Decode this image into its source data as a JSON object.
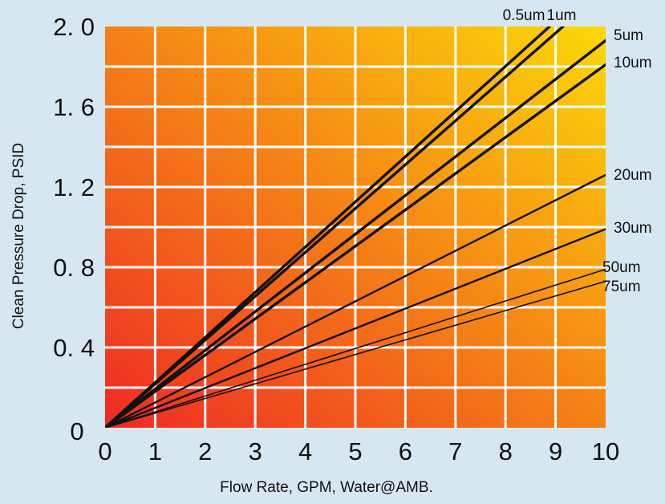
{
  "chart_data": {
    "type": "line",
    "xlabel": "Flow Rate, GPM, Water@AMB.",
    "ylabel": "Clean Pressure Drop, PSID",
    "xlim": [
      0,
      10
    ],
    "ylim": [
      0,
      2.0
    ],
    "x_ticks": [
      "0",
      "1",
      "2",
      "3",
      "4",
      "5",
      "6",
      "7",
      "8",
      "9",
      "10"
    ],
    "y_ticks": [
      {
        "value": 0,
        "label": "0"
      },
      {
        "value": 0.4,
        "label": "0. 4"
      },
      {
        "value": 0.8,
        "label": "0. 8"
      },
      {
        "value": 1.2,
        "label": "1. 2"
      },
      {
        "value": 1.6,
        "label": "1. 6"
      },
      {
        "value": 2.0,
        "label": "2. 0"
      }
    ],
    "grid": true,
    "grid_divisions": {
      "x": 10,
      "y": 10
    },
    "background_gradient": [
      "#ee2a24",
      "#fcd808"
    ],
    "line_color": "#111111",
    "series": [
      {
        "name": "0.5um",
        "x": [
          0,
          8.88
        ],
        "y": [
          0,
          2.0
        ],
        "weight": "heavy"
      },
      {
        "name": "1um",
        "x": [
          0,
          9.15
        ],
        "y": [
          0,
          2.0
        ],
        "weight": "heavy"
      },
      {
        "name": "5um",
        "x": [
          0,
          10
        ],
        "y": [
          0,
          1.93
        ],
        "weight": "heavy"
      },
      {
        "name": "10um",
        "x": [
          0,
          10
        ],
        "y": [
          0,
          1.81
        ],
        "weight": "heavy"
      },
      {
        "name": "20um",
        "x": [
          0,
          10
        ],
        "y": [
          0,
          1.26
        ],
        "weight": "medium"
      },
      {
        "name": "30um",
        "x": [
          0,
          10
        ],
        "y": [
          0,
          0.99
        ],
        "weight": "medium"
      },
      {
        "name": "50um",
        "x": [
          0,
          10
        ],
        "y": [
          0,
          0.79
        ],
        "weight": "light"
      },
      {
        "name": "75um",
        "x": [
          0,
          10
        ],
        "y": [
          0,
          0.73
        ],
        "weight": "light"
      }
    ]
  }
}
